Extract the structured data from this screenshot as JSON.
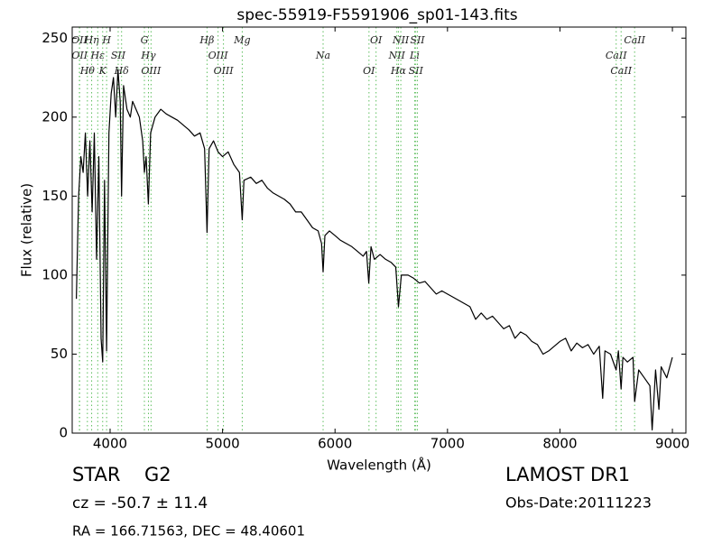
{
  "chart_data": {
    "type": "line",
    "title": "spec-55919-F5591906_sp01-143.fits",
    "xlabel": "Wavelength (Å)",
    "ylabel": "Flux (relative)",
    "color": "#000000",
    "xlim": [
      3663,
      9120
    ],
    "ylim": [
      0,
      257
    ],
    "xticks": [
      4000,
      5000,
      6000,
      7000,
      8000,
      9000
    ],
    "yticks": [
      0,
      50,
      100,
      150,
      200,
      250
    ],
    "grid": false,
    "x": [
      3700,
      3720,
      3740,
      3760,
      3780,
      3800,
      3820,
      3840,
      3860,
      3880,
      3900,
      3920,
      3934,
      3950,
      3969,
      3990,
      4010,
      4030,
      4050,
      4070,
      4090,
      4102,
      4120,
      4150,
      4180,
      4200,
      4230,
      4260,
      4290,
      4305,
      4320,
      4340,
      4360,
      4400,
      4450,
      4500,
      4550,
      4600,
      4650,
      4700,
      4750,
      4800,
      4840,
      4862,
      4880,
      4920,
      4960,
      5000,
      5050,
      5100,
      5150,
      5175,
      5190,
      5250,
      5300,
      5350,
      5400,
      5450,
      5500,
      5550,
      5600,
      5650,
      5700,
      5750,
      5800,
      5850,
      5880,
      5894,
      5910,
      5950,
      6000,
      6050,
      6100,
      6150,
      6200,
      6250,
      6280,
      6300,
      6320,
      6350,
      6400,
      6450,
      6500,
      6540,
      6564,
      6590,
      6650,
      6700,
      6750,
      6800,
      6850,
      6900,
      6950,
      7000,
      7050,
      7100,
      7150,
      7200,
      7250,
      7300,
      7350,
      7400,
      7450,
      7500,
      7550,
      7600,
      7650,
      7700,
      7750,
      7800,
      7850,
      7900,
      7950,
      8000,
      8050,
      8100,
      8150,
      8200,
      8250,
      8300,
      8350,
      8380,
      8400,
      8450,
      8500,
      8520,
      8544,
      8560,
      8600,
      8650,
      8664,
      8700,
      8750,
      8800,
      8820,
      8850,
      8880,
      8900,
      8950,
      9000
    ],
    "values": [
      85,
      150,
      175,
      165,
      190,
      150,
      185,
      140,
      190,
      110,
      175,
      60,
      45,
      160,
      52,
      190,
      215,
      225,
      200,
      230,
      210,
      150,
      220,
      205,
      200,
      210,
      205,
      200,
      185,
      165,
      175,
      145,
      190,
      200,
      205,
      202,
      200,
      198,
      195,
      192,
      188,
      190,
      180,
      127,
      180,
      185,
      178,
      175,
      178,
      170,
      165,
      135,
      160,
      162,
      158,
      160,
      155,
      152,
      150,
      148,
      145,
      140,
      140,
      135,
      130,
      128,
      120,
      102,
      125,
      128,
      125,
      122,
      120,
      118,
      115,
      112,
      115,
      95,
      118,
      110,
      113,
      110,
      108,
      105,
      80,
      100,
      100,
      98,
      95,
      96,
      92,
      88,
      90,
      88,
      86,
      84,
      82,
      80,
      72,
      76,
      72,
      74,
      70,
      66,
      68,
      60,
      64,
      62,
      58,
      56,
      50,
      52,
      55,
      58,
      60,
      52,
      57,
      54,
      56,
      50,
      55,
      22,
      52,
      50,
      40,
      52,
      28,
      48,
      45,
      48,
      20,
      40,
      35,
      30,
      2,
      40,
      15,
      42,
      35,
      48
    ],
    "line_color": "#5fbf5f",
    "spectral_lines": [
      {
        "x": 3727,
        "label": "OII"
      },
      {
        "x": 3729,
        "label": "OII"
      },
      {
        "x": 3798,
        "label": "Hθ"
      },
      {
        "x": 3836,
        "label": "Hη"
      },
      {
        "x": 3890,
        "label": "Hε"
      },
      {
        "x": 3934,
        "label": "K"
      },
      {
        "x": 3969,
        "label": "H"
      },
      {
        "x": 4072,
        "label": "SII"
      },
      {
        "x": 4102,
        "label": "Hδ"
      },
      {
        "x": 4305,
        "label": "G"
      },
      {
        "x": 4341,
        "label": "Hγ"
      },
      {
        "x": 4364,
        "label": "OIII"
      },
      {
        "x": 4862,
        "label": "Hβ"
      },
      {
        "x": 4960,
        "label": "OIII"
      },
      {
        "x": 5008,
        "label": "OIII"
      },
      {
        "x": 5175,
        "label": "Mg"
      },
      {
        "x": 5894,
        "label": "Na"
      },
      {
        "x": 6302,
        "label": "OI"
      },
      {
        "x": 6365,
        "label": "OI"
      },
      {
        "x": 6550,
        "label": "NII"
      },
      {
        "x": 6564,
        "label": "Hα"
      },
      {
        "x": 6585,
        "label": "NII"
      },
      {
        "x": 6708,
        "label": "Li"
      },
      {
        "x": 6718,
        "label": "SII"
      },
      {
        "x": 6733,
        "label": "SII"
      },
      {
        "x": 8500,
        "label": "CaII"
      },
      {
        "x": 8544,
        "label": "CaII"
      },
      {
        "x": 8664,
        "label": "CaII"
      }
    ]
  },
  "info": {
    "object_class": "STAR",
    "subclass": "G2",
    "survey": "LAMOST DR1",
    "redshift": "cz = -50.7 ± 11.4",
    "obs_date": "Obs-Date:20111223",
    "coords": "RA = 166.71563, DEC = 48.40601"
  }
}
